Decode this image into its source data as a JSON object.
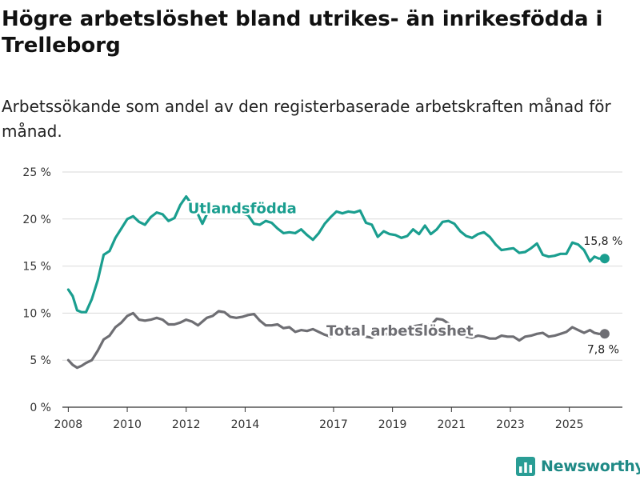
{
  "header": {
    "title": "Högre arbetslöshet bland utrikes- än inrikesfödda i Trelleborg",
    "subtitle": "Arbetssökande som andel av den registerbaserade arbetskraften månad för månad."
  },
  "brand": {
    "name": "Newsworthy",
    "icon": "bar-chart-logo-icon",
    "color": "#2a9d95"
  },
  "chart_data": {
    "type": "line",
    "title": "Högre arbetslöshet bland utrikes- än inrikesfödda i Trelleborg",
    "subtitle": "Arbetssökande som andel av den registerbaserade arbetskraften månad för månad.",
    "xlabel": "",
    "ylabel": "",
    "ylim": [
      0,
      25
    ],
    "xlim": [
      2007.8,
      2026.8
    ],
    "grid": true,
    "y_ticks": [
      0,
      5,
      10,
      15,
      20,
      25
    ],
    "y_tick_labels": [
      "0 %",
      "5 %",
      "10 %",
      "15 %",
      "20 %",
      "25 %"
    ],
    "x_ticks": [
      2008,
      2010,
      2012,
      2014,
      2017,
      2019,
      2021,
      2023,
      2025
    ],
    "x_tick_labels": [
      "2008",
      "2010",
      "2012",
      "2014",
      "2017",
      "2019",
      "2021",
      "2023",
      "2025"
    ],
    "series": [
      {
        "name": "Utlandsfödda",
        "color": "#1a9e8f",
        "end_label": "15,8 %",
        "end_value": 15.8,
        "x": [
          2008.0,
          2008.15,
          2008.3,
          2008.45,
          2008.6,
          2008.8,
          2009.0,
          2009.2,
          2009.4,
          2009.6,
          2009.8,
          2010.0,
          2010.2,
          2010.4,
          2010.6,
          2010.8,
          2011.0,
          2011.2,
          2011.4,
          2011.6,
          2011.8,
          2012.0,
          2012.2,
          2012.4,
          2012.55,
          2012.7,
          2012.9,
          2013.1,
          2013.3,
          2013.5,
          2013.7,
          2013.9,
          2014.1,
          2014.3,
          2014.5,
          2014.7,
          2014.9,
          2015.1,
          2015.3,
          2015.5,
          2015.7,
          2015.9,
          2016.1,
          2016.3,
          2016.5,
          2016.7,
          2016.9,
          2017.1,
          2017.3,
          2017.5,
          2017.7,
          2017.9,
          2018.1,
          2018.3,
          2018.5,
          2018.7,
          2018.9,
          2019.1,
          2019.3,
          2019.5,
          2019.7,
          2019.9,
          2020.1,
          2020.3,
          2020.5,
          2020.7,
          2020.9,
          2021.1,
          2021.3,
          2021.5,
          2021.7,
          2021.9,
          2022.1,
          2022.3,
          2022.5,
          2022.7,
          2022.9,
          2023.1,
          2023.3,
          2023.5,
          2023.7,
          2023.9,
          2024.1,
          2024.3,
          2024.5,
          2024.7,
          2024.9,
          2025.1,
          2025.3,
          2025.5,
          2025.7,
          2025.85,
          2026.0,
          2026.2
        ],
        "values": [
          12.5,
          11.8,
          10.3,
          10.1,
          10.1,
          11.5,
          13.5,
          16.2,
          16.6,
          18.0,
          19.0,
          20.0,
          20.3,
          19.7,
          19.4,
          20.2,
          20.7,
          20.5,
          19.8,
          20.1,
          21.5,
          22.4,
          21.5,
          20.5,
          19.5,
          20.5,
          21.0,
          21.5,
          21.0,
          21.3,
          21.2,
          20.6,
          20.4,
          19.5,
          19.4,
          19.8,
          19.6,
          19.0,
          18.5,
          18.6,
          18.5,
          18.9,
          18.3,
          17.8,
          18.5,
          19.5,
          20.2,
          20.8,
          20.6,
          20.8,
          20.7,
          20.9,
          19.6,
          19.4,
          18.1,
          18.7,
          18.4,
          18.3,
          18.0,
          18.2,
          18.9,
          18.4,
          19.3,
          18.4,
          18.9,
          19.7,
          19.8,
          19.5,
          18.7,
          18.2,
          18.0,
          18.4,
          18.6,
          18.1,
          17.3,
          16.7,
          16.8,
          16.9,
          16.4,
          16.5,
          16.9,
          17.4,
          16.2,
          16.0,
          16.1,
          16.3,
          16.3,
          17.5,
          17.3,
          16.7,
          15.5,
          16.0,
          15.8,
          15.8
        ]
      },
      {
        "name": "Total arbetslöshet",
        "color": "#6e6e73",
        "end_label": "7,8 %",
        "end_value": 7.8,
        "x": [
          2008.0,
          2008.15,
          2008.3,
          2008.45,
          2008.6,
          2008.8,
          2009.0,
          2009.2,
          2009.4,
          2009.6,
          2009.8,
          2010.0,
          2010.2,
          2010.4,
          2010.6,
          2010.8,
          2011.0,
          2011.2,
          2011.4,
          2011.6,
          2011.8,
          2012.0,
          2012.2,
          2012.4,
          2012.55,
          2012.7,
          2012.9,
          2013.1,
          2013.3,
          2013.5,
          2013.7,
          2013.9,
          2014.1,
          2014.3,
          2014.5,
          2014.7,
          2014.9,
          2015.1,
          2015.3,
          2015.5,
          2015.7,
          2015.9,
          2016.1,
          2016.3,
          2016.5,
          2016.7,
          2016.9,
          2017.1,
          2017.3,
          2017.5,
          2017.7,
          2017.9,
          2018.1,
          2018.3,
          2018.5,
          2018.7,
          2018.9,
          2019.1,
          2019.3,
          2019.5,
          2019.7,
          2019.9,
          2020.1,
          2020.3,
          2020.5,
          2020.7,
          2020.9,
          2021.1,
          2021.3,
          2021.5,
          2021.7,
          2021.9,
          2022.1,
          2022.3,
          2022.5,
          2022.7,
          2022.9,
          2023.1,
          2023.3,
          2023.5,
          2023.7,
          2023.9,
          2024.1,
          2024.3,
          2024.5,
          2024.7,
          2024.9,
          2025.1,
          2025.3,
          2025.5,
          2025.7,
          2025.85,
          2026.0,
          2026.2
        ],
        "values": [
          5.0,
          4.5,
          4.2,
          4.4,
          4.7,
          5.0,
          6.0,
          7.2,
          7.6,
          8.5,
          9.0,
          9.7,
          10.0,
          9.3,
          9.2,
          9.3,
          9.5,
          9.3,
          8.8,
          8.8,
          9.0,
          9.3,
          9.1,
          8.7,
          9.1,
          9.5,
          9.7,
          10.2,
          10.1,
          9.6,
          9.5,
          9.6,
          9.8,
          9.9,
          9.2,
          8.7,
          8.7,
          8.8,
          8.4,
          8.5,
          8.0,
          8.2,
          8.1,
          8.3,
          8.0,
          7.7,
          7.5,
          7.8,
          8.2,
          8.5,
          8.0,
          8.1,
          7.5,
          7.4,
          7.7,
          7.9,
          7.6,
          8.0,
          7.8,
          7.7,
          8.6,
          8.7,
          8.8,
          8.7,
          9.4,
          9.3,
          8.9,
          8.3,
          7.9,
          7.5,
          7.4,
          7.6,
          7.5,
          7.3,
          7.3,
          7.6,
          7.5,
          7.5,
          7.1,
          7.5,
          7.6,
          7.8,
          7.9,
          7.5,
          7.6,
          7.8,
          8.0,
          8.5,
          8.2,
          7.9,
          8.2,
          7.9,
          7.8,
          7.8
        ]
      }
    ],
    "annotations": [
      {
        "text": "Utlandsfödda",
        "series": "Utlandsfödda",
        "x": 2013.9,
        "y": 21.2
      },
      {
        "text": "Total arbetslöshet",
        "series": "Total arbetslöshet",
        "x": 2019.25,
        "y": 8.2
      }
    ]
  }
}
